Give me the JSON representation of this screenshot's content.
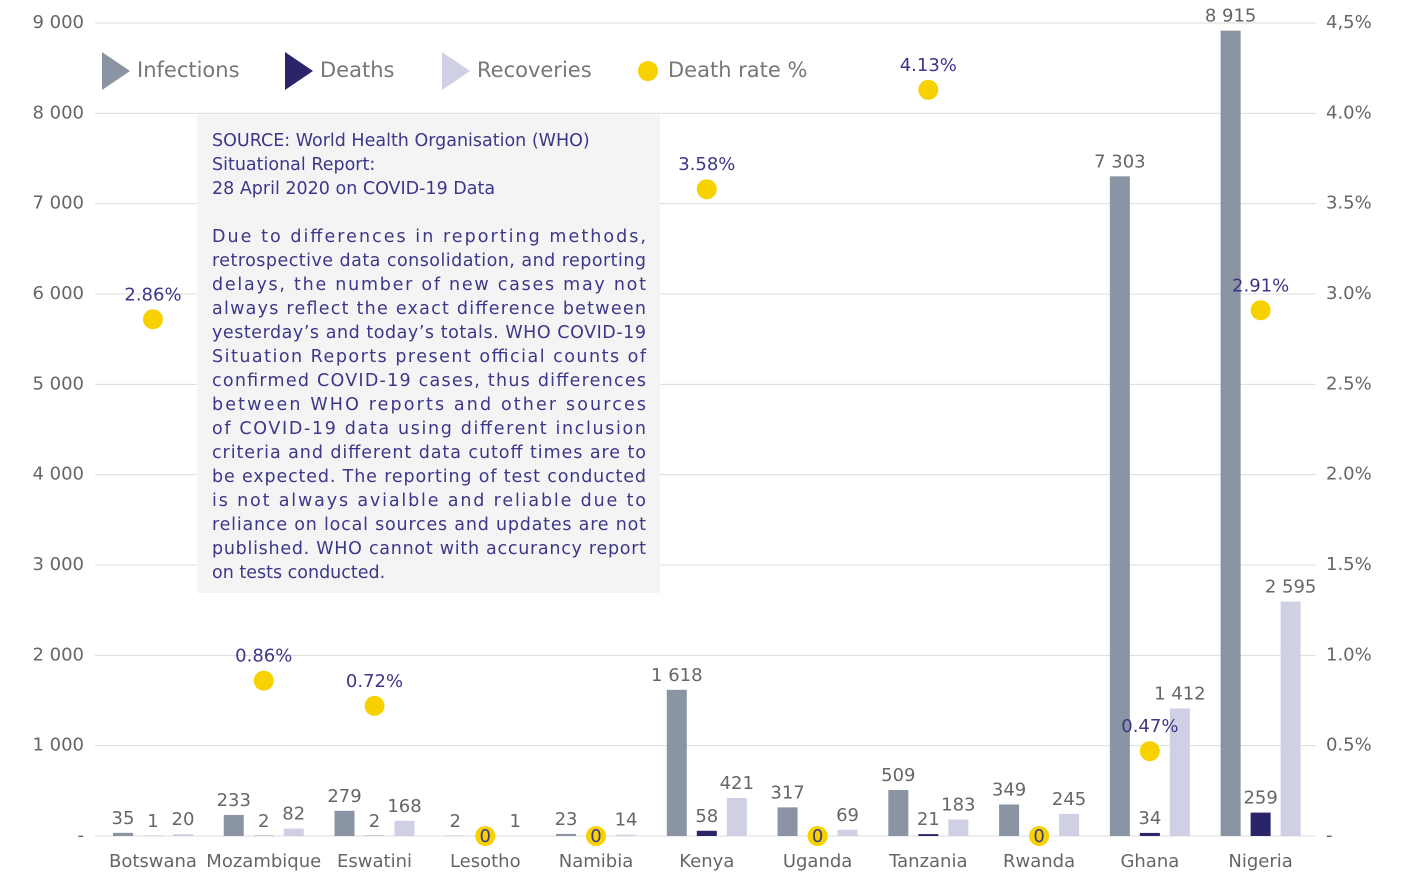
{
  "chart_data": {
    "type": "bar",
    "categories": [
      "Botswana",
      "Mozambique",
      "Eswatini",
      "Lesotho",
      "Namibia",
      "Kenya",
      "Uganda",
      "Tanzania",
      "Rwanda",
      "Ghana",
      "Nigeria"
    ],
    "series": [
      {
        "name": "Infections",
        "type": "bar",
        "color": "#8a94a3",
        "values": [
          35,
          233,
          279,
          2,
          23,
          1618,
          317,
          509,
          349,
          7303,
          8915
        ],
        "value_labels": [
          "35",
          "233",
          "279",
          "2",
          "23",
          "1 618",
          "317",
          "509",
          "349",
          "7 303",
          "8 915"
        ]
      },
      {
        "name": "Deaths",
        "type": "bar",
        "color": "#2a2468",
        "values": [
          1,
          2,
          2,
          0,
          0,
          58,
          0,
          21,
          0,
          34,
          259
        ],
        "value_labels": [
          "1",
          "2",
          "2",
          null,
          null,
          "58",
          null,
          "21",
          null,
          "34",
          "259"
        ]
      },
      {
        "name": "Recoveries",
        "type": "bar",
        "color": "#cfd0e3",
        "values": [
          20,
          82,
          168,
          1,
          14,
          421,
          69,
          183,
          245,
          1412,
          2595
        ],
        "value_labels": [
          "20",
          "82",
          "168",
          "1",
          "14",
          "421",
          "69",
          "183",
          "245",
          "1 412",
          "2 595"
        ]
      },
      {
        "name": "Death rate %",
        "type": "scatter",
        "axis": "y2",
        "color": "#f7d100",
        "values": [
          2.86,
          0.86,
          0.72,
          0,
          0,
          3.58,
          0,
          4.13,
          0,
          0.47,
          2.91
        ],
        "value_labels": [
          "2.86%",
          "0.86%",
          "0.72%",
          "0",
          "0",
          "3.58%",
          "0",
          "4.13%",
          "0",
          "0.47%",
          "2.91%"
        ]
      }
    ],
    "ylim": [
      0,
      9000
    ],
    "yticks": [
      {
        "value": 0,
        "label": "-"
      },
      {
        "value": 1000,
        "label": "1 000"
      },
      {
        "value": 2000,
        "label": "2 000"
      },
      {
        "value": 3000,
        "label": "3 000"
      },
      {
        "value": 4000,
        "label": "4 000"
      },
      {
        "value": 5000,
        "label": "5 000"
      },
      {
        "value": 6000,
        "label": "6 000"
      },
      {
        "value": 7000,
        "label": "7 000"
      },
      {
        "value": 8000,
        "label": "8 000"
      },
      {
        "value": 9000,
        "label": "9 000"
      }
    ],
    "y2lim": [
      0,
      4.5
    ],
    "y2ticks": [
      {
        "value": 0,
        "label": "-"
      },
      {
        "value": 0.5,
        "label": "0.5%"
      },
      {
        "value": 1,
        "label": "1.0%"
      },
      {
        "value": 1.5,
        "label": "1.5%"
      },
      {
        "value": 2,
        "label": "2.0%"
      },
      {
        "value": 2.5,
        "label": "2.5%"
      },
      {
        "value": 3,
        "label": "3.0%"
      },
      {
        "value": 3.5,
        "label": "3.5%"
      },
      {
        "value": 4,
        "label": "4.0%"
      },
      {
        "value": 4.5,
        "label": "4,5%"
      }
    ],
    "grid": true,
    "legend": "top-left",
    "annotation": {
      "source": [
        "SOURCE: World Health Organisation (WHO)",
        "Situational Report:",
        "28 April 2020 on COVID-19 Data"
      ],
      "note": [
        "Due to differences in reporting methods,",
        "retrospective data consolidation, and reporting",
        "delays, the number of new cases may not",
        "always reflect the exact difference between",
        "yesterday’s and today’s totals. WHO COVID-19",
        "Situation Reports present official counts of",
        "confirmed COVID-19 cases, thus differences",
        "between WHO reports and other sources",
        "of COVID-19 data using different inclusion",
        "criteria and different data cutoff times are to",
        "be expected. The reporting of test conducted",
        "is not always avialble and reliable due to",
        "reliance on local sources and updates are not",
        "published. WHO cannot with accurancy report",
        "on tests conducted."
      ]
    }
  }
}
